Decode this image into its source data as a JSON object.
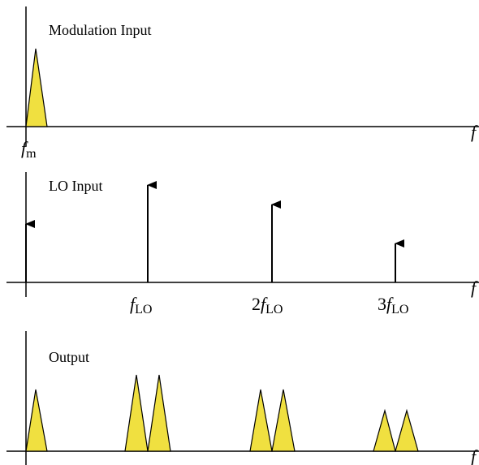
{
  "colors": {
    "fill": "#F0E040",
    "stroke": "#000000",
    "background": "#FFFFFF"
  },
  "panels": [
    {
      "title": "Modulation Input",
      "axis_label": "f",
      "tick_labels": [
        {
          "italic": "f",
          "sub": "m"
        }
      ],
      "peaks": [
        {
          "kind": "triangle",
          "relative_height": 1.0
        }
      ]
    },
    {
      "title": "LO Input",
      "axis_label": "f",
      "tick_labels": [
        {
          "prefix": "",
          "italic": "f",
          "sub": "LO"
        },
        {
          "prefix": "2",
          "italic": "f",
          "sub": "LO"
        },
        {
          "prefix": "3",
          "italic": "f",
          "sub": "LO"
        }
      ],
      "arrows": [
        {
          "position": "0",
          "relative_height": 0.37
        },
        {
          "position": "fLO",
          "relative_height": 1.0
        },
        {
          "position": "2fLO",
          "relative_height": 0.8
        },
        {
          "position": "3fLO",
          "relative_height": 0.4
        }
      ]
    },
    {
      "title": "Output",
      "axis_label": "f",
      "peaks": [
        {
          "position": "0",
          "relative_height": 0.78
        },
        {
          "position": "fLO-fm",
          "relative_height": 1.0
        },
        {
          "position": "fLO+fm",
          "relative_height": 1.0
        },
        {
          "position": "2fLO-fm",
          "relative_height": 0.78
        },
        {
          "position": "2fLO+fm",
          "relative_height": 0.78
        },
        {
          "position": "3fLO-fm",
          "relative_height": 0.53
        },
        {
          "position": "3fLO+fm",
          "relative_height": 0.53
        }
      ]
    }
  ]
}
